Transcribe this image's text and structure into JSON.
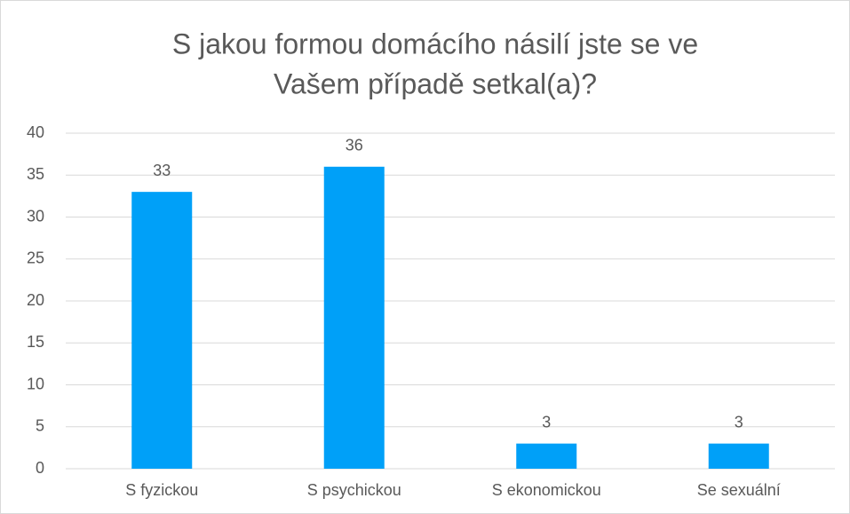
{
  "chart_data": {
    "type": "bar",
    "title": [
      "S jakou formou domácího násilí jste se ve",
      "Vašem případě setkal(a)?"
    ],
    "categories": [
      "S fyzickou",
      "S psychickou",
      "S ekonomickou",
      "Se sexuální"
    ],
    "values": [
      33,
      36,
      3,
      3
    ],
    "color": "#00a0f8",
    "ylim": [
      0,
      40
    ],
    "yticks": [
      0,
      5,
      10,
      15,
      20,
      25,
      30,
      35,
      40
    ],
    "grid": true
  }
}
